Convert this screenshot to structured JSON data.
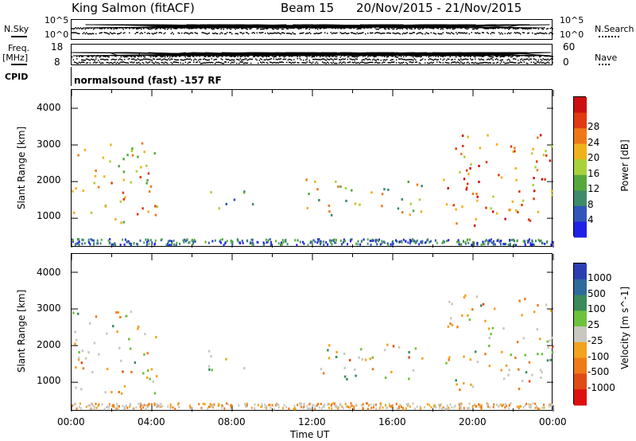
{
  "header": {
    "station": "King Salmon (fitACF)",
    "beam": "Beam 15",
    "date_range": "20/Nov/2015 - 21/Nov/2015"
  },
  "aux_panels": {
    "nsky_label": "N.Sky",
    "nsky_ticks": [
      "10^5",
      "10^0"
    ],
    "nsearch_label": "N.Search",
    "nsearch_ticks": [
      "10^5",
      "10^0"
    ],
    "freq_label": "Freq.",
    "freq_unit": "[MHz]",
    "freq_ticks": [
      "18",
      "8"
    ],
    "nave_label": "Nave",
    "nave_ticks": [
      "60",
      "0"
    ],
    "cpid_label": "CPID",
    "cpid_text": "normalsound (fast) -157 RF"
  },
  "colors": {
    "power": [
      "#1f1fe6",
      "#2f56b8",
      "#3f8a6a",
      "#56a83c",
      "#a8d23a",
      "#f0b21c",
      "#ee7818",
      "#e03a12",
      "#cc1010"
    ],
    "velocity": [
      "#2b3fb0",
      "#2e6b9c",
      "#3a8a5a",
      "#6cc23c",
      "#c8c8c0",
      "#f2a21e",
      "#ee7a18",
      "#e04a14",
      "#dd1010"
    ]
  },
  "chart_data": [
    {
      "type": "heatmap",
      "title": "",
      "ylabel": "Slant Range [km]",
      "xlabel": "",
      "x_ticks": [
        "00:00",
        "04:00",
        "08:00",
        "12:00",
        "16:00",
        "20:00",
        "00:00"
      ],
      "y_ticks": [
        "1000",
        "2000",
        "3000",
        "4000"
      ],
      "ylim": [
        200,
        4500
      ],
      "colorbar": {
        "label": "Power [dB]",
        "tick_labels": [
          "4",
          "8",
          "12",
          "16",
          "20",
          "24",
          "28"
        ]
      },
      "regions": [
        {
          "t_start": 0.0,
          "t_end": 4.3,
          "r_min": 900,
          "r_max": 3100,
          "value_db": 18
        },
        {
          "t_start": 6.8,
          "t_end": 9.0,
          "r_min": 1300,
          "r_max": 1900,
          "value_db": 8
        },
        {
          "t_start": 11.6,
          "t_end": 17.5,
          "r_min": 1100,
          "r_max": 2100,
          "value_db": 14
        },
        {
          "t_start": 18.5,
          "t_end": 24.0,
          "r_min": 800,
          "r_max": 3400,
          "value_db": 22
        }
      ]
    },
    {
      "type": "heatmap",
      "title": "",
      "ylabel": "Slant Range [km]",
      "xlabel": "Time UT",
      "x_ticks": [
        "00:00",
        "04:00",
        "08:00",
        "12:00",
        "16:00",
        "20:00",
        "00:00"
      ],
      "y_ticks": [
        "1000",
        "2000",
        "3000",
        "4000"
      ],
      "ylim": [
        200,
        4500
      ],
      "colorbar": {
        "label": "Velocity [m s^-1]",
        "tick_labels": [
          "1000",
          "500",
          "100",
          "25",
          "-25",
          "-100",
          "-500",
          "-1000"
        ]
      },
      "regions": [
        {
          "t_start": 0.0,
          "t_end": 4.3,
          "r_min": 700,
          "r_max": 3100,
          "value_ms": 0
        },
        {
          "t_start": 6.8,
          "t_end": 9.0,
          "r_min": 1300,
          "r_max": 1900,
          "value_ms": -100
        },
        {
          "t_start": 11.6,
          "t_end": 17.5,
          "r_min": 1100,
          "r_max": 2100,
          "value_ms": -100
        },
        {
          "t_start": 18.5,
          "t_end": 24.0,
          "r_min": 800,
          "r_max": 3400,
          "value_ms": 0
        }
      ]
    }
  ]
}
